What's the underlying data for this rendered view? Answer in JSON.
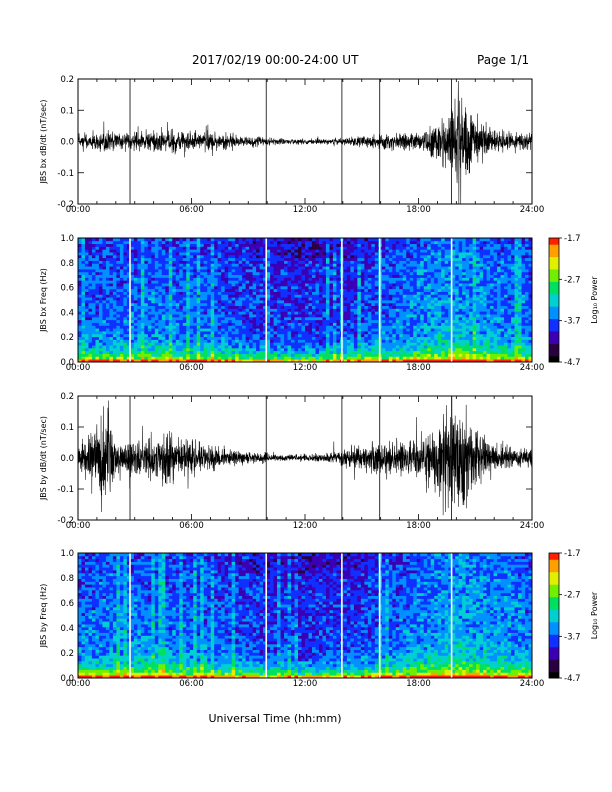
{
  "header": {
    "date_range": "2017/02/19  00:00-24:00 UT",
    "page": "Page 1/1"
  },
  "colorbar": {
    "ticks": [
      "-1.7",
      "-2.7",
      "-3.7",
      "-4.7"
    ],
    "label": "Log₁₀ Power",
    "colors": [
      "#000000",
      "#2a0040",
      "#3c00b4",
      "#1030ff",
      "#0090ff",
      "#00d0d0",
      "#00e060",
      "#70f000",
      "#e0f000",
      "#ffa000",
      "#ff2000"
    ]
  },
  "chart_data": [
    {
      "type": "line",
      "panel": "bx-waveform",
      "ylabel": "JBS bx dB/dt (nT/sec)",
      "xlim": [
        0,
        24
      ],
      "ylim": [
        -0.2,
        0.2
      ],
      "x_ticks": [
        "00:00",
        "06:00",
        "12:00",
        "18:00",
        "24:00"
      ],
      "y_ticks": [
        "-0.2",
        "-0.1",
        "0.0",
        "0.1",
        "0.2"
      ],
      "gap_markers_hours": [
        2.75,
        9.95,
        13.95,
        15.95,
        19.75
      ],
      "envelope": {
        "hours": [
          0,
          1,
          2,
          3,
          4,
          5,
          6,
          7,
          8,
          9,
          10,
          11,
          12,
          13,
          14,
          15,
          16,
          17,
          18,
          19,
          19.5,
          20,
          20.5,
          21,
          22,
          23,
          24
        ],
        "amplitude": [
          0.02,
          0.04,
          0.03,
          0.03,
          0.04,
          0.04,
          0.035,
          0.03,
          0.025,
          0.02,
          0.015,
          0.01,
          0.01,
          0.01,
          0.012,
          0.02,
          0.025,
          0.03,
          0.035,
          0.06,
          0.1,
          0.18,
          0.15,
          0.08,
          0.04,
          0.03,
          0.03
        ]
      }
    },
    {
      "type": "heatmap",
      "panel": "bx-spectrogram",
      "ylabel": "JBS bx Freq (Hz)",
      "xlim": [
        0,
        24
      ],
      "ylim": [
        0.0,
        1.0
      ],
      "x_ticks": [
        "00:00",
        "06:00",
        "12:00",
        "18:00",
        "24:00"
      ],
      "y_ticks": [
        "0.0",
        "0.2",
        "0.4",
        "0.6",
        "0.8",
        "1.0"
      ],
      "value_range_log10": [
        -4.7,
        -1.7
      ],
      "gap_markers_hours": [
        2.75,
        9.95,
        13.95,
        15.95,
        19.75
      ]
    },
    {
      "type": "line",
      "panel": "by-waveform",
      "ylabel": "JBS by dB/dt (nT/sec)",
      "xlim": [
        0,
        24
      ],
      "ylim": [
        -0.2,
        0.2
      ],
      "x_ticks": [
        "00:00",
        "06:00",
        "12:00",
        "18:00",
        "24:00"
      ],
      "y_ticks": [
        "-0.2",
        "-0.1",
        "0.0",
        "0.1",
        "0.2"
      ],
      "gap_markers_hours": [
        2.75,
        9.95,
        13.95,
        15.95,
        19.75
      ],
      "envelope": {
        "hours": [
          0,
          1,
          1.5,
          2,
          3,
          4,
          5,
          6,
          7,
          8,
          9,
          10,
          11,
          12,
          13,
          14,
          15,
          16,
          17,
          18,
          19,
          19.5,
          20,
          20.5,
          21,
          22,
          23,
          24
        ],
        "amplitude": [
          0.05,
          0.12,
          0.2,
          0.06,
          0.07,
          0.07,
          0.09,
          0.06,
          0.04,
          0.03,
          0.02,
          0.015,
          0.012,
          0.012,
          0.015,
          0.03,
          0.04,
          0.06,
          0.06,
          0.08,
          0.12,
          0.19,
          0.2,
          0.19,
          0.1,
          0.05,
          0.04,
          0.04
        ]
      }
    },
    {
      "type": "heatmap",
      "panel": "by-spectrogram",
      "ylabel": "JBS by Freq (Hz)",
      "xlim": [
        0,
        24
      ],
      "ylim": [
        0.0,
        1.0
      ],
      "x_ticks": [
        "00:00",
        "06:00",
        "12:00",
        "18:00",
        "24:00"
      ],
      "y_ticks": [
        "0.0",
        "0.2",
        "0.4",
        "0.6",
        "0.8",
        "1.0"
      ],
      "value_range_log10": [
        -4.7,
        -1.7
      ],
      "gap_markers_hours": [
        2.75,
        9.95,
        13.95,
        15.95,
        19.75
      ]
    }
  ],
  "xlabel": "Universal Time (hh:mm)"
}
